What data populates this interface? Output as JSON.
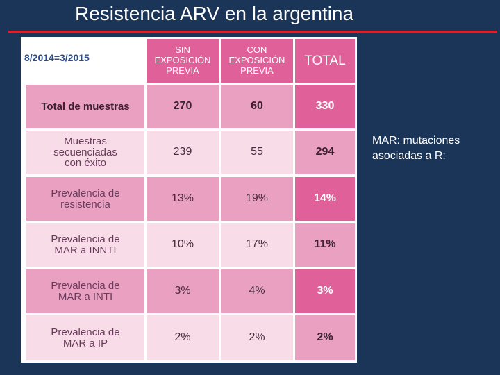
{
  "slide": {
    "title": "Resistencia ARV en la argentina",
    "date_range": "8/2014=3/2015",
    "note": "MAR: mutaciones asociadas a R:"
  },
  "table": {
    "headers": [
      "SIN EXPOSICIÓN PREVIA",
      "CON EXPOSICIÓN PREVIA",
      "TOTAL"
    ],
    "rows": [
      {
        "label": "Total de muestras",
        "values": [
          "270",
          "60",
          "330"
        ]
      },
      {
        "label": "Muestras secuenciadas con éxito",
        "values": [
          "239",
          "55",
          "294"
        ]
      },
      {
        "label": "Prevalencia de resistencia",
        "values": [
          "13%",
          "19%",
          "14%"
        ]
      },
      {
        "label": "Prevalencia de MAR a INNTI",
        "values": [
          "10%",
          "17%",
          "11%"
        ]
      },
      {
        "label": "Prevalencia de MAR a INTI",
        "values": [
          "3%",
          "4%",
          "3%"
        ]
      },
      {
        "label": "Prevalencia de MAR a IP",
        "values": [
          "2%",
          "2%",
          "2%"
        ]
      }
    ]
  },
  "colors": {
    "background": "#1b3558",
    "title_rule": "#d6242f",
    "header": "#e0609a",
    "row_dark": "#eaa0c0",
    "row_light": "#f8dde8",
    "total_dark": "#e0609a",
    "total_light": "#eaa0c0"
  }
}
